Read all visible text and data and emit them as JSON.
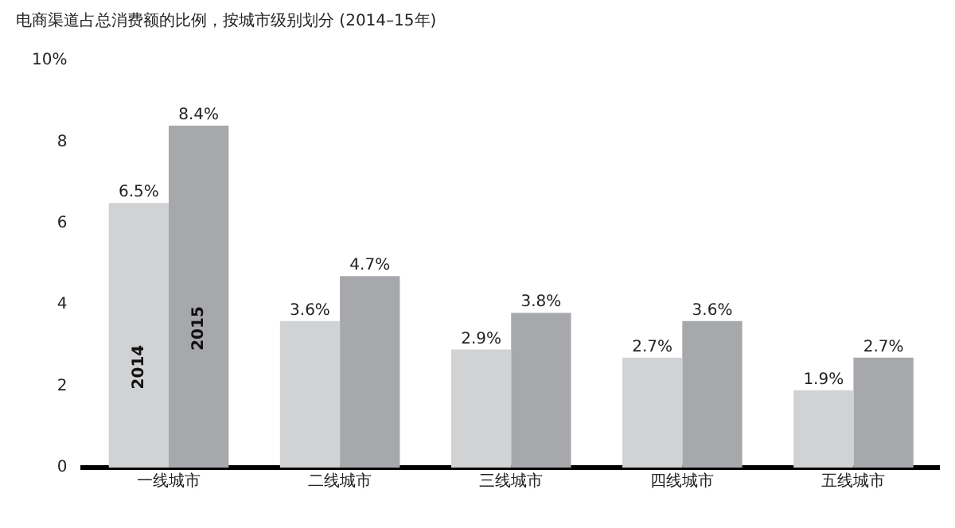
{
  "chart_data": {
    "type": "bar",
    "title": "电商渠道占总消费额的比例，按城市级别划分 (2014–15年)",
    "categories": [
      "一线城市",
      "二线城市",
      "三线城市",
      "四线城市",
      "五线城市"
    ],
    "series": [
      {
        "name": "2014",
        "color": "#d1d2d4",
        "values": [
          6.5,
          3.6,
          2.9,
          2.7,
          1.9
        ],
        "value_labels": [
          "6.5%",
          "3.6%",
          "2.9%",
          "2.7%",
          "1.9%"
        ]
      },
      {
        "name": "2015",
        "color": "#a7a8ab",
        "values": [
          8.4,
          4.7,
          3.8,
          3.6,
          2.7
        ],
        "value_labels": [
          "8.4%",
          "4.7%",
          "3.8%",
          "3.6%",
          "2.7%"
        ]
      }
    ],
    "ylim": [
      0,
      10
    ],
    "yticks": [
      0,
      2,
      4,
      6,
      8,
      {
        "value": 10,
        "label": "10%"
      }
    ],
    "grid": false,
    "legend": false
  }
}
